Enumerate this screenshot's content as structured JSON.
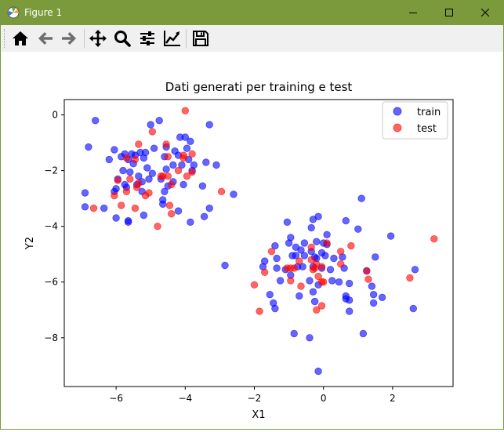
{
  "window": {
    "title": "Figure 1",
    "titlebar_color": "#7a9a3c"
  },
  "toolbar": {
    "buttons": [
      {
        "icon": "home-icon",
        "label": "Home"
      },
      {
        "icon": "back-arrow-icon",
        "label": "Back"
      },
      {
        "icon": "forward-arrow-icon",
        "label": "Forward"
      },
      {
        "icon": "pan-icon",
        "label": "Pan"
      },
      {
        "icon": "zoom-icon",
        "label": "Zoom"
      },
      {
        "icon": "subplots-icon",
        "label": "Subplots"
      },
      {
        "icon": "edit-axis-icon",
        "label": "Customize"
      },
      {
        "icon": "save-icon",
        "label": "Save"
      }
    ]
  },
  "chart_data": {
    "type": "scatter",
    "title": "Dati generati per training e test",
    "xlabel": "X1",
    "ylabel": "Y2",
    "xlim": [
      -7.5,
      3.75
    ],
    "ylim": [
      -9.75,
      0.55
    ],
    "xticks": [
      -6,
      -4,
      -2,
      0,
      2
    ],
    "xtick_labels": [
      "−6",
      "−4",
      "−2",
      "0",
      "2"
    ],
    "yticks": [
      0,
      -2,
      -4,
      -6,
      -8
    ],
    "ytick_labels": [
      "0",
      "−2",
      "−4",
      "−6",
      "−8"
    ],
    "grid": false,
    "legend_position": "top-right",
    "series": [
      {
        "name": "train",
        "color": "#0000ff",
        "points": [
          [
            -6.6,
            -0.2
          ],
          [
            -6.8,
            -1.15
          ],
          [
            -5.0,
            -0.35
          ],
          [
            -4.75,
            -0.2
          ],
          [
            -4.15,
            -0.8
          ],
          [
            -4.0,
            -0.8
          ],
          [
            -3.3,
            -0.35
          ],
          [
            -3.85,
            -0.95
          ],
          [
            -6.05,
            -1.25
          ],
          [
            -5.75,
            -1.4
          ],
          [
            -5.55,
            -1.4
          ],
          [
            -5.45,
            -1.45
          ],
          [
            -5.3,
            -1.35
          ],
          [
            -5.15,
            -1.35
          ],
          [
            -4.9,
            -1.2
          ],
          [
            -4.55,
            -1.15
          ],
          [
            -4.3,
            -1.3
          ],
          [
            -3.95,
            -1.2
          ],
          [
            -6.2,
            -1.6
          ],
          [
            -5.85,
            -1.5
          ],
          [
            -5.65,
            -1.6
          ],
          [
            -5.5,
            -1.75
          ],
          [
            -5.2,
            -1.55
          ],
          [
            -4.6,
            -1.5
          ],
          [
            -4.2,
            -1.45
          ],
          [
            -3.9,
            -1.6
          ],
          [
            -3.75,
            -1.8
          ],
          [
            -3.4,
            -1.7
          ],
          [
            -3.1,
            -1.8
          ],
          [
            -5.8,
            -2.0
          ],
          [
            -5.6,
            -2.05
          ],
          [
            -5.35,
            -2.2
          ],
          [
            -5.1,
            -1.9
          ],
          [
            -4.95,
            -2.1
          ],
          [
            -4.55,
            -1.95
          ],
          [
            -4.35,
            -1.8
          ],
          [
            -4.1,
            -1.8
          ],
          [
            -3.8,
            -2.0
          ],
          [
            -5.95,
            -2.3
          ],
          [
            -5.75,
            -2.5
          ],
          [
            -5.4,
            -2.5
          ],
          [
            -5.25,
            -2.4
          ],
          [
            -5.05,
            -2.3
          ],
          [
            -4.7,
            -2.3
          ],
          [
            -4.5,
            -2.55
          ],
          [
            -4.05,
            -2.5
          ],
          [
            -6.0,
            -2.65
          ],
          [
            -6.05,
            -2.75
          ],
          [
            -5.7,
            -2.6
          ],
          [
            -5.25,
            -2.75
          ],
          [
            -4.6,
            -2.75
          ],
          [
            -4.35,
            -2.4
          ],
          [
            -3.5,
            -2.55
          ],
          [
            -6.35,
            -3.35
          ],
          [
            -6.0,
            -3.7
          ],
          [
            -5.65,
            -3.8
          ],
          [
            -5.65,
            -3.85
          ],
          [
            -5.2,
            -3.6
          ],
          [
            -4.65,
            -3.2
          ],
          [
            -4.2,
            -3.45
          ],
          [
            -3.85,
            -3.85
          ],
          [
            -3.45,
            -3.65
          ],
          [
            -3.3,
            -3.35
          ],
          [
            -2.6,
            -2.85
          ],
          [
            -2.85,
            -5.4
          ],
          [
            -6.9,
            -2.8
          ],
          [
            -6.9,
            -3.3
          ],
          [
            -4.65,
            -3.05
          ],
          [
            -1.05,
            -3.85
          ],
          [
            -0.35,
            -4.05
          ],
          [
            -0.15,
            -3.65
          ],
          [
            -0.3,
            -3.75
          ],
          [
            0.1,
            -4.3
          ],
          [
            0.65,
            -3.8
          ],
          [
            1.1,
            -3.0
          ],
          [
            1.0,
            -4.1
          ],
          [
            1.95,
            -4.35
          ],
          [
            -0.95,
            -4.4
          ],
          [
            -0.55,
            -4.6
          ],
          [
            -0.2,
            -4.55
          ],
          [
            0.0,
            -4.6
          ],
          [
            0.1,
            -4.65
          ],
          [
            -1.4,
            -4.7
          ],
          [
            -1.0,
            -4.6
          ],
          [
            -0.8,
            -4.75
          ],
          [
            -0.65,
            -4.85
          ],
          [
            -0.35,
            -4.9
          ],
          [
            -0.05,
            -4.95
          ],
          [
            0.05,
            -5.05
          ],
          [
            0.55,
            -5.1
          ],
          [
            0.3,
            -5.15
          ],
          [
            -1.7,
            -5.25
          ],
          [
            -1.35,
            -5.15
          ],
          [
            -0.9,
            -5.05
          ],
          [
            -0.8,
            -5.05
          ],
          [
            -0.55,
            -5.05
          ],
          [
            -0.25,
            -5.1
          ],
          [
            -0.2,
            -5.15
          ],
          [
            1.5,
            -5.1
          ],
          [
            -1.75,
            -5.45
          ],
          [
            -1.35,
            -5.5
          ],
          [
            -1.1,
            -5.55
          ],
          [
            -0.75,
            -5.45
          ],
          [
            -0.6,
            -5.45
          ],
          [
            -0.3,
            -5.45
          ],
          [
            -0.05,
            -5.5
          ],
          [
            0.2,
            -5.55
          ],
          [
            0.6,
            -5.5
          ],
          [
            1.25,
            -5.6
          ],
          [
            -1.25,
            -5.95
          ],
          [
            -0.95,
            -5.75
          ],
          [
            -0.4,
            -5.95
          ],
          [
            -0.15,
            -6.1
          ],
          [
            0.25,
            -5.95
          ],
          [
            0.45,
            -6.0
          ],
          [
            0.75,
            -6.05
          ],
          [
            1.4,
            -6.15
          ],
          [
            -1.55,
            -6.45
          ],
          [
            -0.7,
            -6.5
          ],
          [
            -0.3,
            -6.35
          ],
          [
            -0.25,
            -6.7
          ],
          [
            0.65,
            -6.5
          ],
          [
            0.65,
            -6.6
          ],
          [
            0.75,
            -6.65
          ],
          [
            1.45,
            -6.45
          ],
          [
            1.7,
            -6.55
          ],
          [
            -1.45,
            -6.75
          ],
          [
            -1.4,
            -6.95
          ],
          [
            0.75,
            -7.05
          ],
          [
            1.45,
            -6.75
          ],
          [
            2.6,
            -6.95
          ],
          [
            2.65,
            -5.55
          ],
          [
            -0.85,
            -7.85
          ],
          [
            -0.4,
            -8.0
          ],
          [
            1.15,
            -7.85
          ],
          [
            -0.15,
            -9.2
          ]
        ]
      },
      {
        "name": "test",
        "color": "#ff0000",
        "points": [
          [
            -4.0,
            0.15
          ],
          [
            -4.95,
            -0.6
          ],
          [
            -5.35,
            -1.05
          ],
          [
            -4.55,
            -1.05
          ],
          [
            -4.05,
            -1.45
          ],
          [
            -5.45,
            -1.6
          ],
          [
            -5.7,
            -1.55
          ],
          [
            -4.5,
            -1.5
          ],
          [
            -3.8,
            -1.4
          ],
          [
            -4.05,
            -1.55
          ],
          [
            -5.95,
            -2.35
          ],
          [
            -5.6,
            -2.3
          ],
          [
            -5.35,
            -2.45
          ],
          [
            -4.65,
            -2.2
          ],
          [
            -4.2,
            -2.0
          ],
          [
            -3.95,
            -2.2
          ],
          [
            -3.8,
            -2.05
          ],
          [
            -4.5,
            -2.2
          ],
          [
            -5.4,
            -2.6
          ],
          [
            -5.05,
            -2.8
          ],
          [
            -4.7,
            -2.2
          ],
          [
            -4.4,
            -2.5
          ],
          [
            -5.7,
            -2.75
          ],
          [
            -6.05,
            -2.9
          ],
          [
            -5.15,
            -2.9
          ],
          [
            -4.45,
            -3.25
          ],
          [
            -5.85,
            -3.25
          ],
          [
            -5.45,
            -3.35
          ],
          [
            -6.65,
            -3.35
          ],
          [
            -4.4,
            -3.55
          ],
          [
            -2.95,
            -2.75
          ],
          [
            -4.8,
            -4.0
          ],
          [
            -0.35,
            -4.75
          ],
          [
            0.1,
            -4.6
          ],
          [
            0.5,
            -4.9
          ],
          [
            0.8,
            -4.7
          ],
          [
            -1.5,
            -4.9
          ],
          [
            -0.7,
            -5.25
          ],
          [
            -0.35,
            -5.2
          ],
          [
            -0.2,
            -5.35
          ],
          [
            0.5,
            -5.35
          ],
          [
            -0.05,
            -5.45
          ],
          [
            -1.05,
            -5.5
          ],
          [
            -0.25,
            -5.5
          ],
          [
            -0.3,
            -5.55
          ],
          [
            -1.7,
            -5.65
          ],
          [
            -0.15,
            -5.8
          ],
          [
            -0.95,
            -5.95
          ],
          [
            -0.05,
            -6.0
          ],
          [
            1.25,
            -5.6
          ],
          [
            1.3,
            -5.9
          ],
          [
            -2.0,
            -6.1
          ],
          [
            -0.65,
            -6.15
          ],
          [
            0.0,
            -6.0
          ],
          [
            -0.85,
            -5.5
          ],
          [
            2.5,
            -5.85
          ],
          [
            3.2,
            -4.45
          ],
          [
            -1.85,
            -7.05
          ],
          [
            -0.05,
            -6.85
          ],
          [
            -0.2,
            -7.0
          ],
          [
            -0.95,
            -5.5
          ]
        ]
      }
    ]
  }
}
